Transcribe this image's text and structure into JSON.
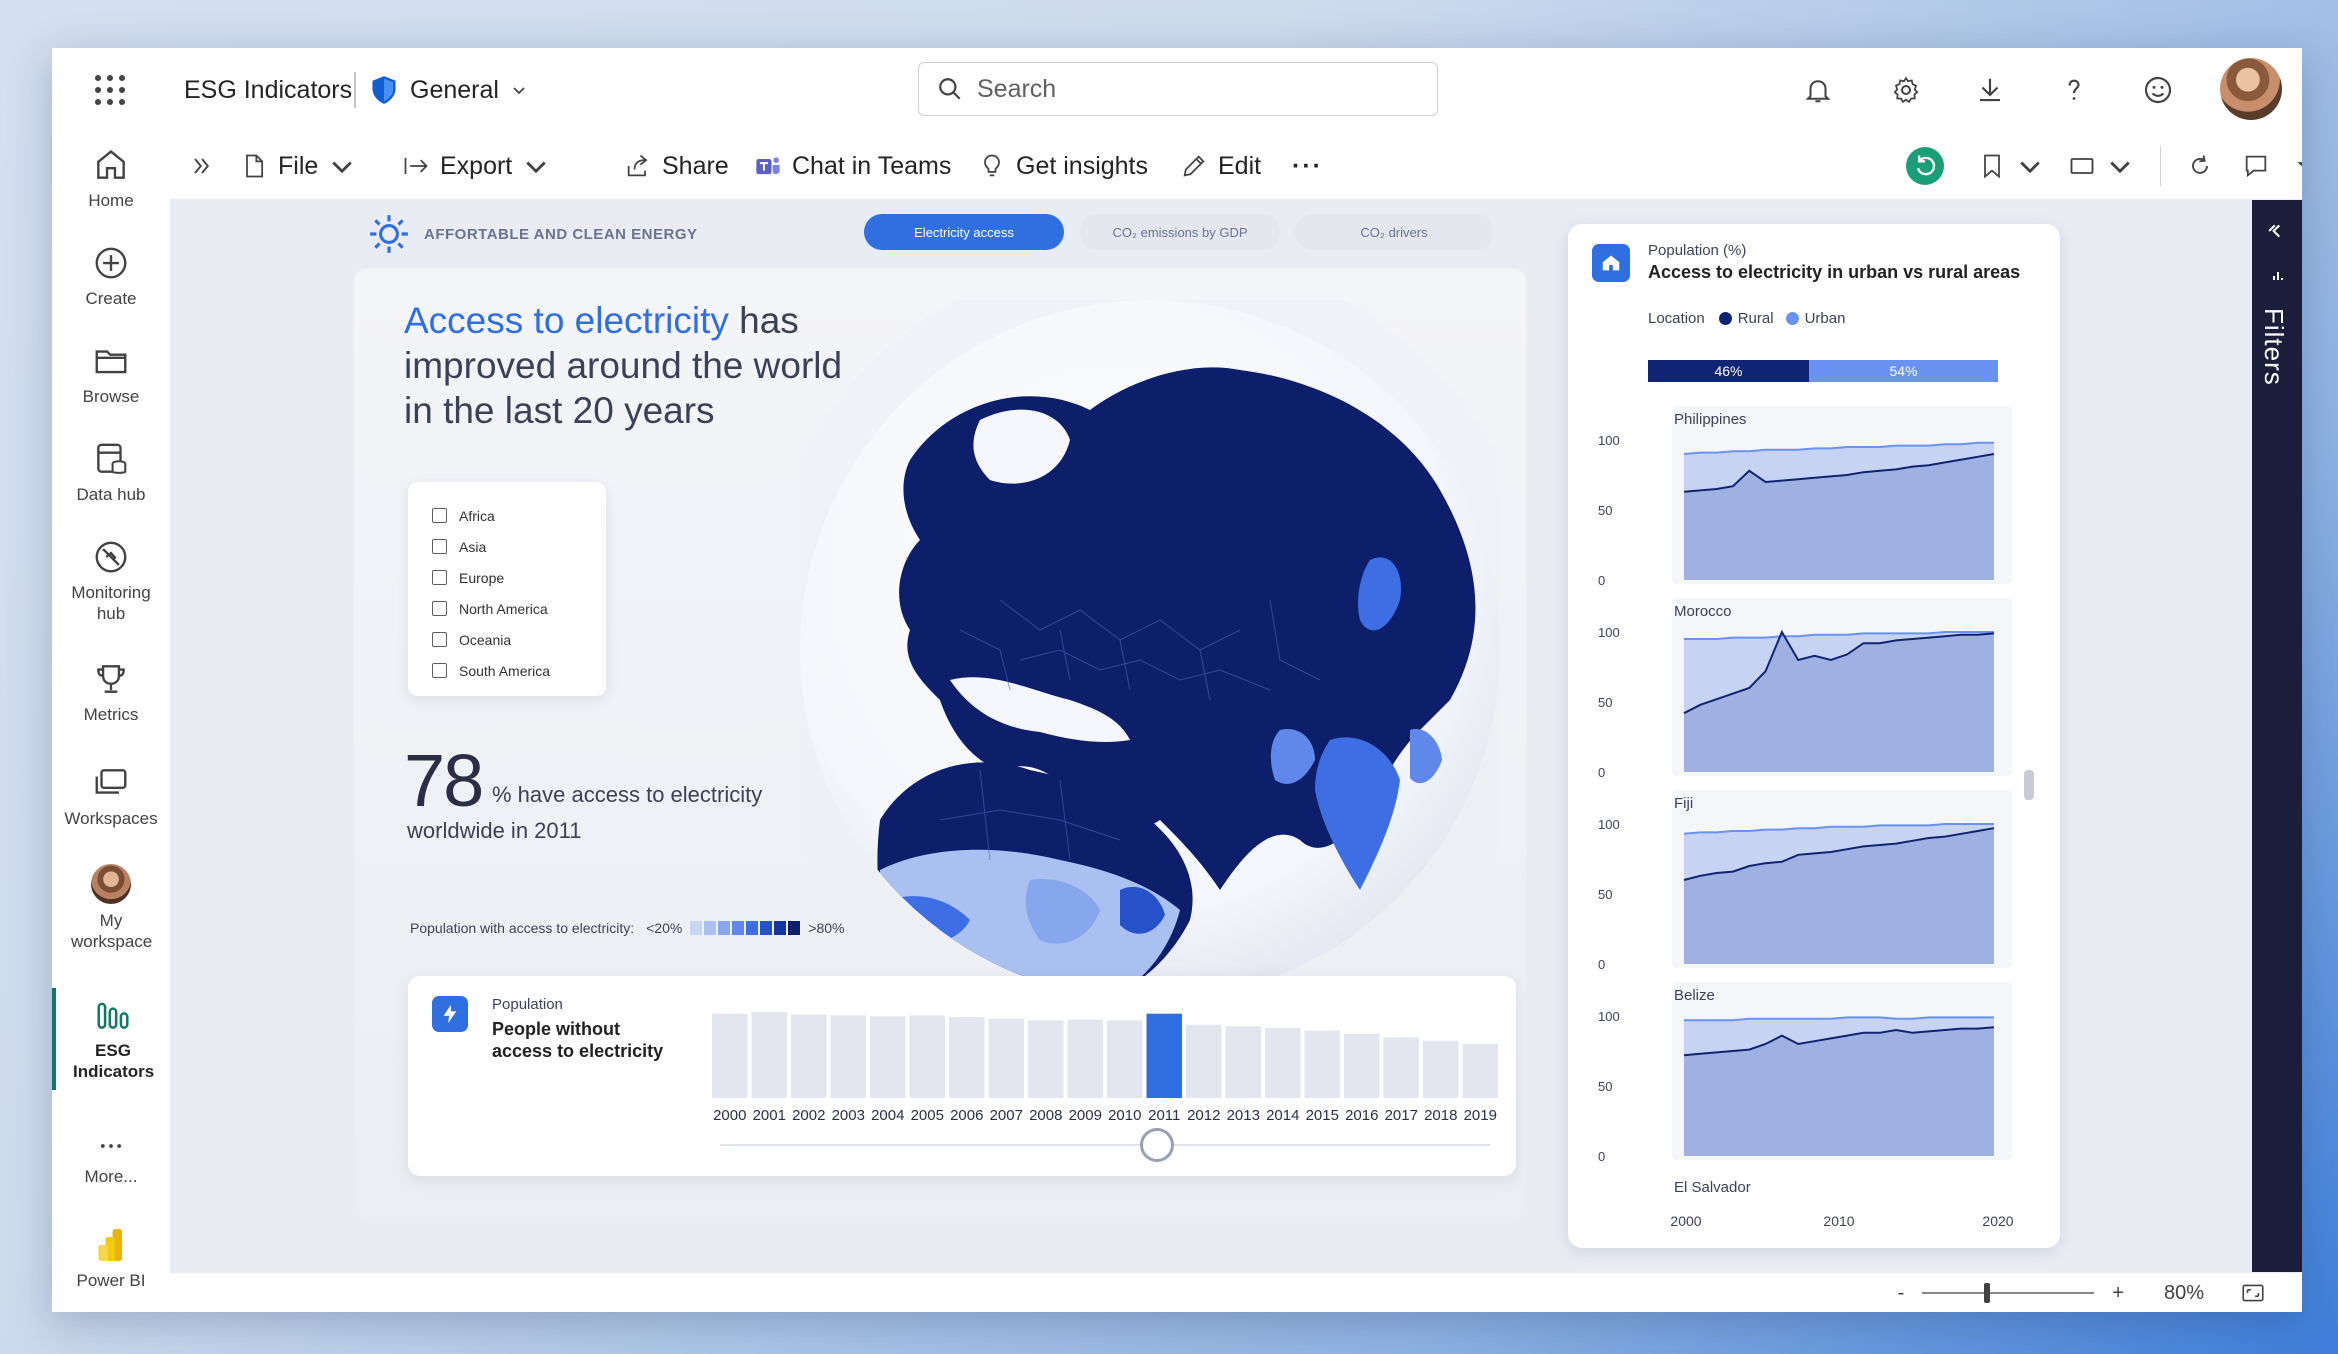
{
  "app": {
    "title": "ESG Indicators",
    "workspace": "General"
  },
  "search": {
    "placeholder": "Search"
  },
  "topbar_icons": [
    "bell-icon",
    "gear-icon",
    "download-icon",
    "help-icon",
    "feedback-icon"
  ],
  "nav": {
    "items": [
      {
        "label": "Home",
        "icon": "home-icon"
      },
      {
        "label": "Create",
        "icon": "plus-circle-icon"
      },
      {
        "label": "Browse",
        "icon": "folder-icon"
      },
      {
        "label": "Data hub",
        "icon": "data-hub-icon"
      },
      {
        "label": "Monitoring hub",
        "icon": "monitoring-icon"
      },
      {
        "label": "Metrics",
        "icon": "trophy-icon"
      },
      {
        "label": "Workspaces",
        "icon": "workspaces-icon"
      },
      {
        "label": "My workspace",
        "icon": "avatar"
      },
      {
        "label": "ESG Indicators",
        "icon": "report-icon"
      },
      {
        "label": "More...",
        "icon": "more-icon"
      },
      {
        "label": "Power BI",
        "icon": "powerbi-logo"
      }
    ]
  },
  "toolbar": {
    "file": "File",
    "export": "Export",
    "share": "Share",
    "chat": "Chat in Teams",
    "insights": "Get insights",
    "edit": "Edit",
    "more": "···"
  },
  "report": {
    "section": "AFFORTABLE AND CLEAN ENERGY",
    "tabs": [
      "Electricity access",
      "CO₂ emissions by GDP",
      "CO₂ drivers"
    ],
    "active_tab": 0,
    "headline_highlight": "Access to electricity",
    "headline_rest": " has improved around the world in the last 20 years",
    "regions": [
      "Africa",
      "Asia",
      "Europe",
      "North America",
      "Oceania",
      "South America"
    ],
    "stat_value": "78",
    "stat_text": "% have access to electricity",
    "stat_text2": "worldwide in 2011",
    "legend_label": "Population with access to electricity:",
    "legend_low": "<20%",
    "legend_high": ">80%",
    "legend_colors": [
      "#c8d5f3",
      "#a9c0f1",
      "#86a6ee",
      "#5f88ea",
      "#3d6ee3",
      "#2652c9",
      "#16359e",
      "#0d1f6a"
    ]
  },
  "population_card": {
    "subtitle": "Population",
    "title": "People without access to electricity",
    "selected_year": "2011"
  },
  "right_card": {
    "subtitle": "Population (%)",
    "title": "Access to electricity in urban vs rural areas",
    "legend_title": "Location",
    "rural_label": "Rural",
    "urban_label": "Urban",
    "rural_color": "#0f2472",
    "urban_color": "#6a92f2",
    "rural_pct": "46%",
    "urban_pct": "54%"
  },
  "status": {
    "zoom": "80%",
    "minus": "-",
    "plus": "+"
  },
  "filters": {
    "label": "Filters"
  },
  "chart_data": [
    {
      "type": "bar",
      "title": "People without access to electricity",
      "categories": [
        "2000",
        "2001",
        "2002",
        "2003",
        "2004",
        "2005",
        "2006",
        "2007",
        "2008",
        "2009",
        "2010",
        "2011",
        "2012",
        "2013",
        "2014",
        "2015",
        "2016",
        "2017",
        "2018",
        "2019"
      ],
      "values": [
        100,
        102,
        99,
        98,
        97,
        98,
        96,
        94,
        92,
        93,
        92,
        100,
        87,
        85,
        83,
        80,
        76,
        72,
        68,
        64
      ],
      "highlight_index": 11
    },
    {
      "type": "area",
      "title": "Access to electricity in urban vs rural areas",
      "x_ticks": [
        "2000",
        "2010",
        "2020"
      ],
      "y_ticks": [
        "0",
        "50",
        "100"
      ],
      "ylim": [
        0,
        100
      ],
      "panels": [
        {
          "name": "Philippines",
          "urban": [
            90,
            91,
            91,
            92,
            92,
            93,
            93,
            93,
            94,
            94,
            95,
            95,
            95,
            96,
            96,
            96,
            97,
            97,
            98,
            98
          ],
          "rural": [
            63,
            64,
            65,
            67,
            78,
            70,
            71,
            72,
            73,
            74,
            75,
            77,
            78,
            79,
            81,
            82,
            84,
            86,
            88,
            90
          ]
        },
        {
          "name": "Morocco",
          "urban": [
            95,
            95,
            95,
            96,
            96,
            96,
            97,
            97,
            98,
            98,
            98,
            99,
            99,
            99,
            99,
            99,
            100,
            100,
            100,
            100
          ],
          "rural": [
            42,
            48,
            52,
            56,
            60,
            72,
            100,
            80,
            83,
            80,
            84,
            92,
            92,
            94,
            95,
            96,
            97,
            98,
            98,
            99
          ]
        },
        {
          "name": "Fiji",
          "urban": [
            93,
            94,
            94,
            95,
            95,
            96,
            96,
            97,
            97,
            98,
            98,
            98,
            99,
            99,
            99,
            99,
            100,
            100,
            100,
            100
          ],
          "rural": [
            60,
            63,
            65,
            66,
            70,
            72,
            73,
            78,
            79,
            80,
            82,
            84,
            85,
            86,
            88,
            90,
            91,
            93,
            95,
            97
          ]
        },
        {
          "name": "Belize",
          "urban": [
            97,
            97,
            97,
            97,
            98,
            98,
            98,
            98,
            98,
            98,
            99,
            99,
            99,
            98,
            98,
            99,
            99,
            99,
            99,
            99
          ],
          "rural": [
            72,
            73,
            74,
            75,
            76,
            80,
            86,
            80,
            82,
            84,
            86,
            88,
            88,
            90,
            88,
            89,
            90,
            91,
            91,
            92
          ]
        },
        {
          "name": "El Salvador",
          "urban": [],
          "rural": []
        }
      ]
    }
  ]
}
